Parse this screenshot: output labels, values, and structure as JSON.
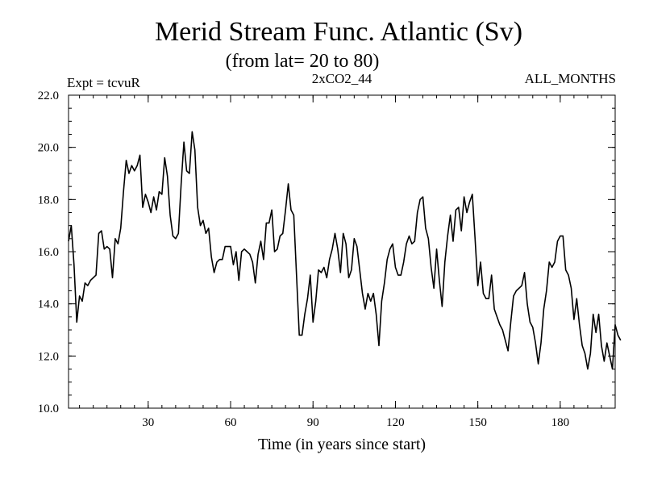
{
  "chart_data": {
    "type": "line",
    "title": "Merid Stream Func. Atlantic (Sv)",
    "subtitle": "(from lat= 20 to 80)",
    "experiment": "Expt = tcvuR",
    "run_label": "2xCO2_44",
    "period_label": "ALL_MONTHS",
    "xlabel": "Time (in years since start)",
    "ylabel": "",
    "xlim": [
      1,
      200
    ],
    "ylim": [
      10.0,
      22.0
    ],
    "x_ticks": [
      30,
      60,
      90,
      120,
      150,
      180
    ],
    "y_ticks": [
      "10.0",
      "12.0",
      "14.0",
      "16.0",
      "18.0",
      "20.0",
      "22.0"
    ],
    "grid": false,
    "series": [
      {
        "values": [
          16.4,
          17.0,
          15.5,
          13.3,
          14.3,
          14.1,
          14.8,
          14.7,
          14.9,
          15.0,
          15.1,
          16.7,
          16.8,
          16.1,
          16.2,
          16.1,
          15.0,
          16.5,
          16.3,
          16.9,
          18.3,
          19.5,
          19.0,
          19.3,
          19.1,
          19.3,
          19.7,
          17.7,
          18.2,
          17.9,
          17.5,
          18.1,
          17.6,
          18.3,
          18.2,
          19.6,
          18.9,
          17.4,
          16.6,
          16.5,
          16.7,
          18.6,
          20.2,
          19.1,
          19.0,
          20.6,
          19.9,
          17.7,
          17.0,
          17.2,
          16.7,
          16.9,
          15.8,
          15.2,
          15.6,
          15.7,
          15.7,
          16.2,
          16.2,
          16.2,
          15.5,
          16.0,
          14.9,
          16.0,
          16.1,
          16.0,
          15.9,
          15.6,
          14.8,
          15.9,
          16.4,
          15.7,
          17.1,
          17.1,
          17.6,
          16.0,
          16.1,
          16.6,
          16.7,
          17.6,
          18.6,
          17.6,
          17.4,
          15.1,
          12.8,
          12.8,
          13.6,
          14.2,
          15.1,
          13.3,
          14.1,
          15.3,
          15.2,
          15.4,
          15.0,
          15.7,
          16.1,
          16.7,
          16.1,
          15.2,
          16.7,
          16.3,
          15.0,
          15.3,
          16.5,
          16.2,
          15.3,
          14.4,
          13.8,
          14.4,
          14.1,
          14.4,
          13.6,
          12.4,
          14.1,
          14.8,
          15.7,
          16.1,
          16.3,
          15.4,
          15.1,
          15.1,
          15.6,
          16.3,
          16.6,
          16.3,
          16.4,
          17.5,
          18.0,
          18.1,
          16.9,
          16.5,
          15.4,
          14.6,
          16.1,
          14.9,
          13.9,
          15.6,
          16.6,
          17.4,
          16.4,
          17.6,
          17.7,
          16.8,
          18.1,
          17.5,
          17.9,
          18.2,
          16.5,
          14.7,
          15.6,
          14.4,
          14.2,
          14.2,
          15.1,
          13.8,
          13.5,
          13.2,
          13.0,
          12.6,
          12.2,
          13.3,
          14.3,
          14.5,
          14.6,
          14.7,
          15.2,
          14.0,
          13.3,
          13.1,
          12.5,
          11.7,
          12.5,
          13.8,
          14.5,
          15.6,
          15.4,
          15.6,
          16.4,
          16.6,
          16.6,
          15.3,
          15.1,
          14.6,
          13.4,
          14.2,
          13.2,
          12.4,
          12.1,
          11.5,
          12.1,
          13.6,
          12.9,
          13.6,
          12.4,
          11.8,
          12.5,
          12.0,
          11.5,
          13.2,
          12.8,
          12.6
        ]
      }
    ]
  }
}
